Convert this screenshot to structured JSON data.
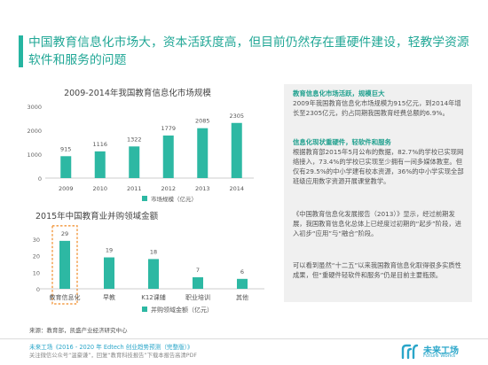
{
  "headline": "中国教育信息化市场大，资本活跃度高，但目前仍然存在重硬件建设，轻教学资源软件和服务的问题",
  "colors": {
    "accent": "#26b5a1",
    "bar": "#2db8a3",
    "highlight_border": "#f08a24",
    "footer_blue": "#2aa6c9"
  },
  "chart_data": [
    {
      "type": "bar",
      "title": "2009-2014年我国教育信息化市场规模",
      "categories": [
        "2009",
        "2010",
        "2011",
        "2012",
        "2013",
        "2014"
      ],
      "series": [
        {
          "name": "市场规模（亿元）",
          "values": [
            915,
            1116,
            1322,
            1779,
            2085,
            2305
          ]
        }
      ],
      "data_labels": [
        "915",
        "1116",
        "1322",
        "1779",
        "2085",
        "2305"
      ],
      "y_ticks": [
        "0",
        "1000",
        "2000",
        "3000"
      ],
      "ylim": [
        0,
        3000
      ],
      "grid": false,
      "legend": "bottom"
    },
    {
      "type": "bar",
      "title": "2015年中国教育业并购领域金额",
      "categories": [
        "教育信息化",
        "早教",
        "K12课辅",
        "职业培训",
        "其他"
      ],
      "series": [
        {
          "name": "并购领域金额（亿元）",
          "values": [
            29,
            19,
            18,
            7,
            6
          ]
        }
      ],
      "data_labels": [
        "29",
        "19",
        "18",
        "7",
        "6"
      ],
      "y_ticks": [
        "0",
        "10",
        "20",
        "30"
      ],
      "ylim": [
        0,
        30
      ],
      "highlight_category": "教育信息化",
      "grid": false,
      "legend": "bottom"
    }
  ],
  "side_panel": {
    "heading1": "教育信息化市场活跃，规模巨大",
    "text1": "2009年我国教育信息化市场规模为915亿元，到2014年增长至2305亿元，约占同期我国教育经费总额的6.9%。",
    "heading2": "信息化现状重硬件，轻软件和服务",
    "text2": "根据教育部2015年5月公布的数据，82.7%的学校已实现网络接入，73.4%的学校已实现至少拥有一间多媒体教室。但仅有29.5%的中小学建有校本资源，36%的中小学实现全部班级应用数字资源开展课堂教学。",
    "text3": "《中国教育信息化发展报告（2013）》显示，经过前期发展，我国教育信息化总体上已经度过初期的“起步”阶段，进入初步“应用”与“融合”阶段。",
    "text4": "可以看到虽然“十二五”以来我国教育信息化取得很多实质性成果，但“重硬件轻软件和服务”仍是目前主要瓶颈。"
  },
  "source_note": "来源：教育部，凯盛产业经济研究中心",
  "footer": {
    "line1": "未来工场《2016 - 2020 年 Edtech 创业趋势预测（完整版）》",
    "line2": "关注微信公众号“温豪谦”，回复“教育科技报告”下载本报告高清PDF",
    "logo_name": "未来工场",
    "logo_sub": "Future Works"
  }
}
